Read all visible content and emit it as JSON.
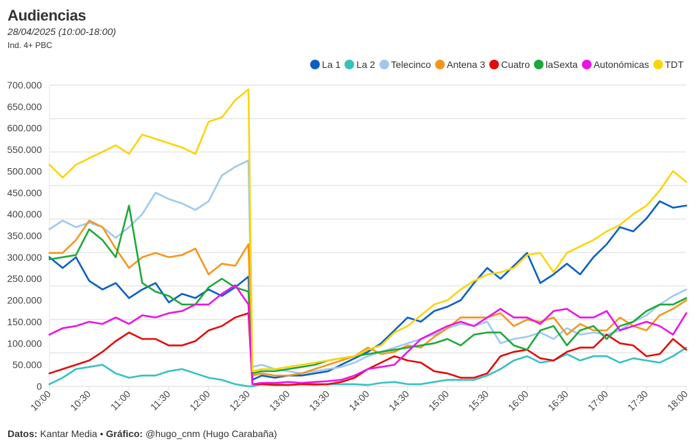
{
  "header": {
    "title": "Audiencias",
    "subtitle": "28/04/2025 (10:00-18:00)",
    "note": "Ind. 4+ PBC"
  },
  "footer": {
    "datos_label": "Datos:",
    "datos_value": "Kantar Media",
    "separator": "•",
    "grafico_label": "Gráfico:",
    "grafico_value": "@hugo_cnm (Hugo Carabaña)"
  },
  "chart_data": {
    "type": "line",
    "title": "Audiencias",
    "subtitle": "28/04/2025 (10:00-18:00)",
    "xlabel": "",
    "ylabel": "",
    "ylim": [
      0,
      700000
    ],
    "yticks": [
      0,
      50000,
      100000,
      150000,
      200000,
      250000,
      300000,
      350000,
      400000,
      450000,
      500000,
      550000,
      600000,
      650000,
      700000
    ],
    "ytick_labels": [
      "0",
      "50.000",
      "100.000",
      "150.000",
      "200.000",
      "250.000",
      "300.000",
      "350.000",
      "400.000",
      "450.000",
      "500.000",
      "550.000",
      "600.000",
      "650.000",
      "700.000"
    ],
    "xlim": [
      "10:00",
      "18:00"
    ],
    "xtick_labels": [
      "10:00",
      "10:30",
      "11:00",
      "11:30",
      "12:00",
      "12:30",
      "13:00",
      "13:30",
      "14:00",
      "14:30",
      "15:00",
      "15:30",
      "16:00",
      "16:30",
      "17:00",
      "17:30",
      "18:00"
    ],
    "grid": true,
    "legend_position": "top-right",
    "x": [
      "10:00",
      "10:10",
      "10:20",
      "10:30",
      "10:40",
      "10:50",
      "11:00",
      "11:10",
      "11:20",
      "11:30",
      "11:40",
      "11:50",
      "12:00",
      "12:10",
      "12:20",
      "12:30",
      "12:33",
      "12:40",
      "12:50",
      "13:00",
      "13:10",
      "13:20",
      "13:30",
      "13:40",
      "13:50",
      "14:00",
      "14:10",
      "14:20",
      "14:30",
      "14:40",
      "14:50",
      "15:00",
      "15:10",
      "15:20",
      "15:30",
      "15:40",
      "15:50",
      "16:00",
      "16:10",
      "16:20",
      "16:30",
      "16:40",
      "16:50",
      "17:00",
      "17:10",
      "17:20",
      "17:30",
      "17:40",
      "17:50",
      "18:00"
    ],
    "series": [
      {
        "name": "La 1",
        "color": "#0b5fc4",
        "values": [
          300000,
          275000,
          300000,
          245000,
          225000,
          240000,
          205000,
          225000,
          240000,
          195000,
          215000,
          205000,
          225000,
          210000,
          230000,
          255000,
          15000,
          25000,
          20000,
          25000,
          25000,
          30000,
          35000,
          50000,
          65000,
          80000,
          100000,
          130000,
          160000,
          150000,
          175000,
          185000,
          200000,
          240000,
          275000,
          250000,
          280000,
          310000,
          240000,
          260000,
          285000,
          260000,
          300000,
          330000,
          370000,
          360000,
          390000,
          430000,
          415000,
          420000
        ]
      },
      {
        "name": "La 2",
        "color": "#36c1c1",
        "values": [
          5000,
          20000,
          40000,
          45000,
          50000,
          30000,
          20000,
          25000,
          25000,
          35000,
          40000,
          30000,
          20000,
          15000,
          5000,
          0,
          0,
          5000,
          5000,
          3000,
          5000,
          3000,
          5000,
          5000,
          5000,
          3000,
          8000,
          10000,
          5000,
          5000,
          10000,
          15000,
          15000,
          15000,
          25000,
          40000,
          60000,
          70000,
          55000,
          60000,
          75000,
          60000,
          70000,
          70000,
          55000,
          65000,
          60000,
          55000,
          70000,
          90000
        ]
      },
      {
        "name": "Telecinco",
        "color": "#9ec8f2",
        "values": [
          365000,
          385000,
          370000,
          380000,
          370000,
          345000,
          370000,
          400000,
          450000,
          435000,
          425000,
          410000,
          430000,
          490000,
          510000,
          525000,
          45000,
          50000,
          40000,
          35000,
          30000,
          35000,
          40000,
          45000,
          55000,
          70000,
          80000,
          90000,
          100000,
          110000,
          120000,
          135000,
          145000,
          140000,
          150000,
          100000,
          110000,
          115000,
          125000,
          110000,
          135000,
          120000,
          125000,
          120000,
          130000,
          150000,
          165000,
          190000,
          210000,
          225000
        ]
      },
      {
        "name": "Antena 3",
        "color": "#f4961e",
        "values": [
          310000,
          310000,
          340000,
          385000,
          370000,
          320000,
          275000,
          300000,
          310000,
          300000,
          305000,
          320000,
          260000,
          285000,
          280000,
          330000,
          25000,
          30000,
          25000,
          25000,
          30000,
          40000,
          50000,
          60000,
          70000,
          90000,
          75000,
          80000,
          95000,
          90000,
          115000,
          135000,
          160000,
          160000,
          160000,
          170000,
          140000,
          155000,
          150000,
          160000,
          120000,
          145000,
          130000,
          130000,
          160000,
          140000,
          130000,
          165000,
          180000,
          200000
        ]
      },
      {
        "name": "Cuatro",
        "color": "#e30b0b",
        "values": [
          30000,
          40000,
          50000,
          60000,
          80000,
          105000,
          125000,
          110000,
          110000,
          95000,
          95000,
          105000,
          130000,
          140000,
          160000,
          170000,
          5000,
          5000,
          3000,
          3000,
          5000,
          5000,
          5000,
          10000,
          20000,
          40000,
          55000,
          70000,
          60000,
          55000,
          35000,
          30000,
          20000,
          20000,
          30000,
          70000,
          80000,
          85000,
          65000,
          60000,
          80000,
          90000,
          90000,
          120000,
          100000,
          95000,
          70000,
          75000,
          110000,
          85000
        ]
      },
      {
        "name": "laSexta",
        "color": "#1ea83a",
        "values": [
          295000,
          300000,
          305000,
          365000,
          340000,
          300000,
          420000,
          240000,
          220000,
          210000,
          190000,
          190000,
          230000,
          250000,
          230000,
          220000,
          30000,
          35000,
          35000,
          40000,
          45000,
          50000,
          60000,
          65000,
          70000,
          75000,
          80000,
          85000,
          90000,
          95000,
          100000,
          110000,
          95000,
          120000,
          125000,
          125000,
          95000,
          85000,
          130000,
          140000,
          95000,
          130000,
          140000,
          110000,
          140000,
          150000,
          175000,
          190000,
          190000,
          205000
        ]
      },
      {
        "name": "Autonómicas",
        "color": "#ea14e6",
        "values": [
          120000,
          135000,
          140000,
          150000,
          145000,
          160000,
          145000,
          165000,
          160000,
          170000,
          175000,
          190000,
          190000,
          215000,
          235000,
          190000,
          5000,
          8000,
          8000,
          10000,
          8000,
          10000,
          12000,
          15000,
          25000,
          40000,
          45000,
          50000,
          80000,
          110000,
          125000,
          140000,
          150000,
          140000,
          160000,
          180000,
          160000,
          160000,
          145000,
          175000,
          180000,
          160000,
          160000,
          175000,
          130000,
          140000,
          150000,
          140000,
          120000,
          170000
        ]
      },
      {
        "name": "TDT",
        "color": "#fbd40b",
        "values": [
          515000,
          485000,
          515000,
          530000,
          545000,
          560000,
          540000,
          585000,
          575000,
          565000,
          555000,
          540000,
          615000,
          625000,
          665000,
          690000,
          35000,
          40000,
          40000,
          45000,
          50000,
          55000,
          60000,
          65000,
          70000,
          85000,
          95000,
          125000,
          140000,
          165000,
          190000,
          200000,
          225000,
          245000,
          260000,
          265000,
          275000,
          305000,
          310000,
          265000,
          310000,
          325000,
          340000,
          360000,
          375000,
          400000,
          420000,
          455000,
          500000,
          475000
        ]
      }
    ]
  }
}
